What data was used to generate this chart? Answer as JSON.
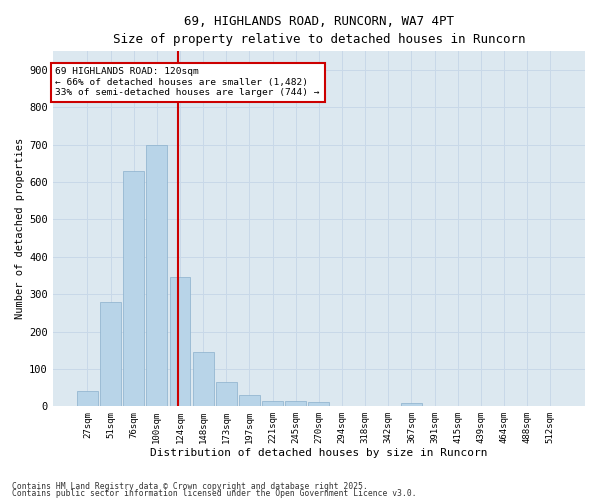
{
  "title_line1": "69, HIGHLANDS ROAD, RUNCORN, WA7 4PT",
  "title_line2": "Size of property relative to detached houses in Runcorn",
  "xlabel": "Distribution of detached houses by size in Runcorn",
  "ylabel": "Number of detached properties",
  "bar_labels": [
    "27sqm",
    "51sqm",
    "76sqm",
    "100sqm",
    "124sqm",
    "148sqm",
    "173sqm",
    "197sqm",
    "221sqm",
    "245sqm",
    "270sqm",
    "294sqm",
    "318sqm",
    "342sqm",
    "367sqm",
    "391sqm",
    "415sqm",
    "439sqm",
    "464sqm",
    "488sqm",
    "512sqm"
  ],
  "bar_values": [
    40,
    280,
    630,
    700,
    345,
    145,
    65,
    30,
    15,
    15,
    10,
    0,
    0,
    0,
    8,
    0,
    0,
    0,
    0,
    0,
    0
  ],
  "bar_color": "#b8d4e8",
  "bar_edge_color": "#8ab0cc",
  "subject_line_label": "69 HIGHLANDS ROAD: 120sqm",
  "annotation_line1": "← 66% of detached houses are smaller (1,482)",
  "annotation_line2": "33% of semi-detached houses are larger (744) →",
  "annotation_box_color": "#ffffff",
  "annotation_box_edge_color": "#cc0000",
  "vline_color": "#cc0000",
  "grid_color": "#c8d8e8",
  "background_color": "#dce8f0",
  "ylim": [
    0,
    950
  ],
  "yticks": [
    0,
    100,
    200,
    300,
    400,
    500,
    600,
    700,
    800,
    900
  ],
  "footer_line1": "Contains HM Land Registry data © Crown copyright and database right 2025.",
  "footer_line2": "Contains public sector information licensed under the Open Government Licence v3.0."
}
